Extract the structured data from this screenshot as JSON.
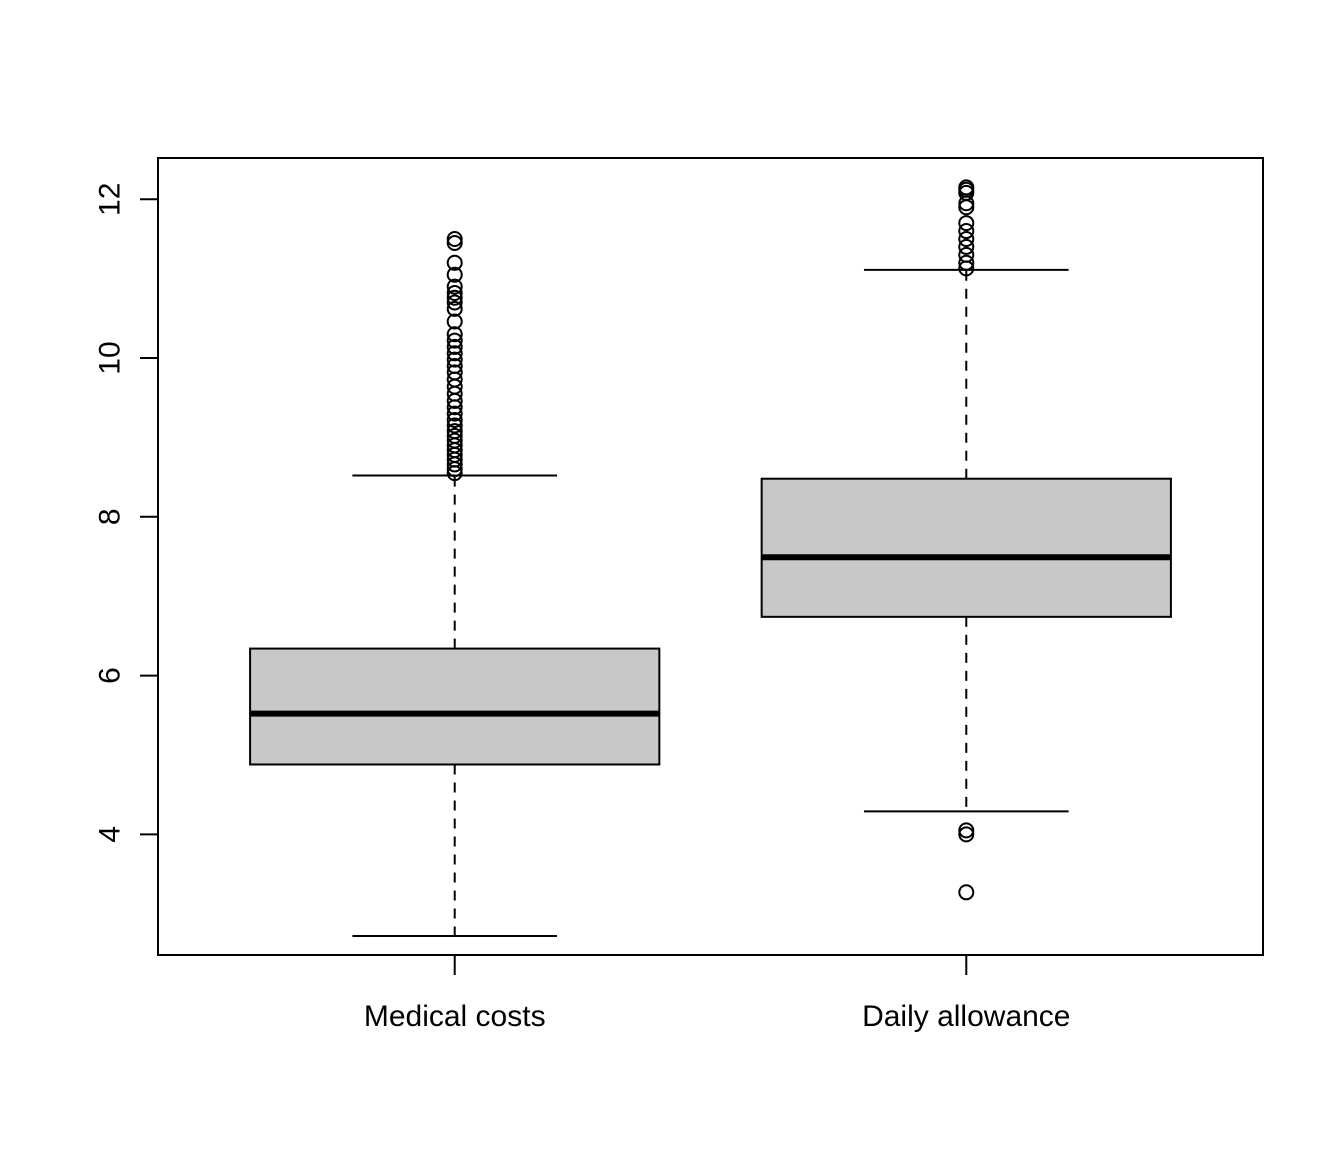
{
  "chart_data": {
    "type": "boxplot",
    "title": "",
    "xlabel": "",
    "ylabel": "",
    "ylim": [
      2.48,
      12.52
    ],
    "y_ticks": [
      4,
      6,
      8,
      10,
      12
    ],
    "y_tick_labels": [
      "4",
      "6",
      "8",
      "10",
      "12"
    ],
    "categories": [
      "Medical costs",
      "Daily allowance"
    ],
    "box_fill": "#c8c8c8",
    "series": [
      {
        "category": "Medical costs",
        "whisker_low": 2.72,
        "q1": 4.88,
        "median": 5.52,
        "q3": 6.34,
        "whisker_high": 8.52,
        "outliers": [
          8.55,
          8.6,
          8.66,
          8.72,
          8.78,
          8.84,
          8.9,
          8.96,
          9.02,
          9.08,
          9.15,
          9.22,
          9.3,
          9.38,
          9.46,
          9.55,
          9.64,
          9.73,
          9.82,
          9.9,
          9.98,
          10.06,
          10.14,
          10.22,
          10.3,
          10.46,
          10.62,
          10.7,
          10.76,
          10.82,
          10.9,
          11.05,
          11.2,
          11.45,
          11.5
        ]
      },
      {
        "category": "Daily allowance",
        "whisker_low": 4.29,
        "q1": 6.74,
        "median": 7.49,
        "q3": 8.48,
        "whisker_high": 11.11,
        "outliers": [
          11.13,
          11.2,
          11.3,
          11.4,
          11.5,
          11.6,
          11.7,
          11.9,
          11.95,
          12.08,
          12.12,
          12.15,
          4.0,
          4.05,
          3.27
        ]
      }
    ]
  }
}
